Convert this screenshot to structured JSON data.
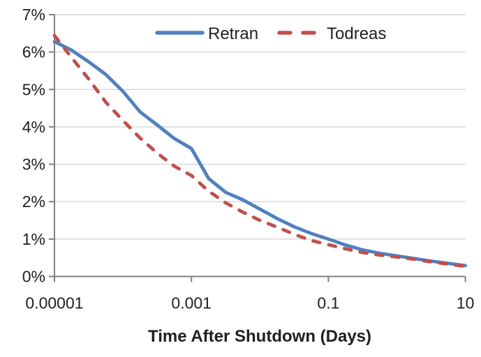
{
  "chart_data": {
    "type": "line",
    "title": "",
    "xlabel": "Time After Shutdown (Days)",
    "ylabel": "",
    "x_scale": "log",
    "xlim_log10": [
      -5,
      1
    ],
    "ylim": [
      0,
      7
    ],
    "grid": "horizontal",
    "legend_position": "top-center-inside",
    "y_ticks": [
      "0%",
      "1%",
      "2%",
      "3%",
      "4%",
      "5%",
      "6%",
      "7%"
    ],
    "x_ticks": [
      {
        "value": 1e-05,
        "label": "0.00001"
      },
      {
        "value": 0.001,
        "label": "0.001"
      },
      {
        "value": 0.1,
        "label": "0.1"
      },
      {
        "value": 10,
        "label": "10"
      }
    ],
    "x": [
      1e-05,
      1.78e-05,
      3.16e-05,
      5.62e-05,
      0.0001,
      0.000178,
      0.000316,
      0.000562,
      0.001,
      0.00178,
      0.00316,
      0.00562,
      0.01,
      0.0178,
      0.0316,
      0.0562,
      0.1,
      0.178,
      0.316,
      0.562,
      1,
      1.78,
      3.16,
      5.62,
      10
    ],
    "series": [
      {
        "name": "Retran",
        "color": "#4F81BD",
        "style": "solid",
        "values_percent": [
          6.28,
          6.05,
          5.74,
          5.4,
          4.95,
          4.4,
          4.05,
          3.69,
          3.42,
          2.62,
          2.25,
          2.05,
          1.8,
          1.55,
          1.33,
          1.15,
          1.0,
          0.84,
          0.71,
          0.62,
          0.55,
          0.48,
          0.41,
          0.35,
          0.29
        ]
      },
      {
        "name": "Todreas",
        "color": "#C0504D",
        "style": "dashed",
        "values_percent": [
          6.44,
          5.85,
          5.28,
          4.66,
          4.17,
          3.7,
          3.3,
          2.95,
          2.7,
          2.28,
          1.97,
          1.72,
          1.5,
          1.32,
          1.13,
          0.96,
          0.85,
          0.74,
          0.64,
          0.57,
          0.52,
          0.46,
          0.39,
          0.33,
          0.27
        ]
      }
    ]
  },
  "colors": {
    "axis": "#808080",
    "gridline": "#D6D6D6",
    "text": "#202020",
    "background": "#FFFFFF"
  }
}
